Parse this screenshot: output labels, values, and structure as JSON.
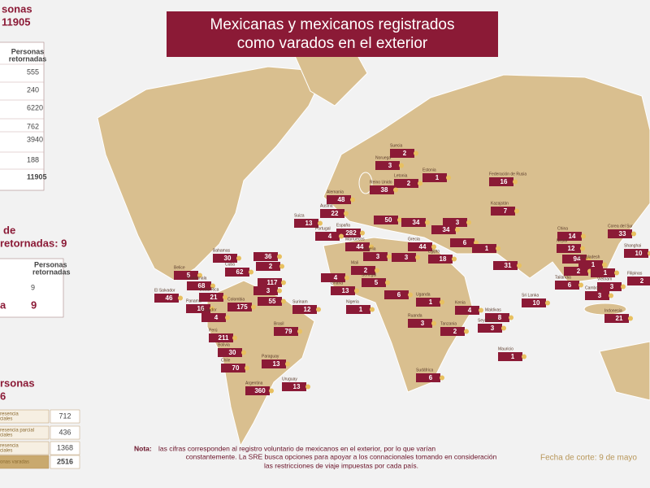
{
  "title": [
    "Mexicanas y mexicanos registrados",
    "como varados en el exterior"
  ],
  "panel_1": {
    "heading": [
      "sonas",
      "11905"
    ],
    "column": [
      "Personas",
      "retornadas"
    ],
    "values": [
      555,
      240,
      6220,
      762,
      3940,
      188,
      11905
    ]
  },
  "panel_2": {
    "heading": [
      "de",
      "retornadas: 9"
    ],
    "column": [
      "Personas",
      "retornadas"
    ],
    "rows": [
      {
        "label": "",
        "value": 9
      },
      {
        "label": "a",
        "value": 9
      }
    ]
  },
  "panel_3": {
    "heading": [
      "rsonas",
      "6"
    ],
    "rows": [
      {
        "label": [
          "resencia",
          "ciales"
        ],
        "value": 712
      },
      {
        "label": [
          "resencia parcial",
          "ciales"
        ],
        "value": 436
      },
      {
        "label": [
          "resencia",
          "ciales"
        ],
        "value": 1368
      },
      {
        "label": [
          "onas varadas"
        ],
        "value": 2516
      }
    ]
  },
  "note": {
    "lead": "Nota:",
    "lines": [
      "las cifras corresponden al registro voluntario de mexicanos en el exterior, por lo que varían",
      "constantemente. La SRE busca opciones para apoyar a los connacionales tomando en consideración",
      "las restricciones de viaje impuestas por cada país."
    ]
  },
  "date": "Fecha de corte: 9 de mayo",
  "markers": [
    {
      "name": "Suecia",
      "value": 2
    },
    {
      "name": "Noruega",
      "value": 3
    },
    {
      "name": "Estonia",
      "value": 1
    },
    {
      "name": "Letonia",
      "value": 2
    },
    {
      "name": "Reino Unido",
      "value": 38
    },
    {
      "name": "Alemania",
      "value": 48
    },
    {
      "name": "Federación de Rusia",
      "value": 16
    },
    {
      "name": "Kazajstán",
      "value": 7
    },
    {
      "name": "Austria",
      "value": 22
    },
    {
      "name": "Suiza",
      "value": 13
    },
    {
      "value": 50
    },
    {
      "name": "España",
      "value": 282
    },
    {
      "name": "Portugal",
      "value": 4
    },
    {
      "name": "Marruecos",
      "value": 44
    },
    {
      "name": "Grecia",
      "value": 44
    },
    {
      "value": 34
    },
    {
      "value": 34
    },
    {
      "value": 6
    },
    {
      "value": 3
    },
    {
      "name": "China",
      "value": 14
    },
    {
      "name": "Corea del Sur",
      "value": 33
    },
    {
      "name": "Shanghai",
      "value": 10
    },
    {
      "name": "Filipinas",
      "value": 2
    },
    {
      "name": "India",
      "value": 94
    },
    {
      "name": "Nepal",
      "value": 12
    },
    {
      "name": "Bangladesh",
      "value": 1
    },
    {
      "name": "Tailandia",
      "value": 6
    },
    {
      "name": "Vietnam",
      "value": 3
    },
    {
      "name": "Camboya",
      "value": 3
    },
    {
      "value": 2
    },
    {
      "value": 1
    },
    {
      "value": 31
    },
    {
      "value": 1
    },
    {
      "name": "Sri Lanka",
      "value": 10
    },
    {
      "name": "Maldivas",
      "value": 8
    },
    {
      "name": "Seychelles",
      "value": 3
    },
    {
      "name": "Mauricio",
      "value": 1
    },
    {
      "name": "Indonesia",
      "value": 21
    },
    {
      "name": "Argelia",
      "value": 3
    },
    {
      "name": "Egipto",
      "value": 18
    },
    {
      "value": 3
    },
    {
      "name": "Mali",
      "value": 2
    },
    {
      "value": 4
    },
    {
      "name": "Senegal",
      "value": 5
    },
    {
      "value": 6
    },
    {
      "name": "Ghana",
      "value": 13
    },
    {
      "name": "Nigeria",
      "value": 1
    },
    {
      "name": "Uganda",
      "value": 1
    },
    {
      "name": "Kenia",
      "value": 4
    },
    {
      "name": "Tanzania",
      "value": 2
    },
    {
      "name": "Ruanda",
      "value": 3
    },
    {
      "name": "Sudáfrica",
      "value": 6
    },
    {
      "name": "Bahamas",
      "value": 30
    },
    {
      "name": "Cuba",
      "value": 62
    },
    {
      "name": "Belice",
      "value": 5
    },
    {
      "name": "Guatemala",
      "value": 68
    },
    {
      "name": "El Salvador",
      "value": 46
    },
    {
      "name": "Costa Rica",
      "value": 21
    },
    {
      "name": "Panamá",
      "value": 16
    },
    {
      "value": 36
    },
    {
      "value": 2
    },
    {
      "value": 117
    },
    {
      "value": 3
    },
    {
      "value": 55
    },
    {
      "name": "Colombia",
      "value": 175
    },
    {
      "name": "Surinam",
      "value": 12
    },
    {
      "name": "Ecuador",
      "value": 4
    },
    {
      "name": "Perú",
      "value": 211
    },
    {
      "name": "Brasil",
      "value": 79
    },
    {
      "name": "Bolivia",
      "value": 30
    },
    {
      "name": "Chile",
      "value": 70
    },
    {
      "name": "Paraguay",
      "value": 13
    },
    {
      "name": "Uruguay",
      "value": 13
    },
    {
      "name": "Argentina",
      "value": 360
    }
  ]
}
